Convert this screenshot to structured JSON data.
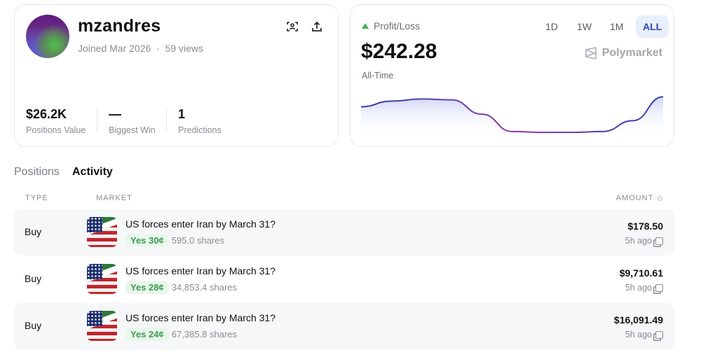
{
  "profile": {
    "username": "mzandres",
    "joined": "Joined Mar 2026",
    "separator": "·",
    "views": "59 views",
    "stats": [
      {
        "value": "$26.2K",
        "label": "Positions Value"
      },
      {
        "value": "—",
        "label": "Biggest Win"
      },
      {
        "value": "1",
        "label": "Predictions"
      }
    ],
    "icons": [
      "scan-profile-icon",
      "share-icon"
    ]
  },
  "pnl": {
    "label": "Profit/Loss",
    "trend": "up",
    "value": "$242.28",
    "period": "All-Time",
    "brand": "Polymarket",
    "ranges": [
      "1D",
      "1W",
      "1M",
      "ALL"
    ],
    "active_range": "ALL"
  },
  "chart_data": {
    "type": "area",
    "series": [
      {
        "values": [
          0.62,
          0.75,
          0.8,
          0.78,
          0.45,
          0.05,
          0.03,
          0.03,
          0.05,
          0.3,
          0.85
        ]
      }
    ],
    "line_colors": [
      "#2e3fa6",
      "#8a3bb0"
    ],
    "fill": "#c9d0f5",
    "axes": "none",
    "grid": false
  },
  "tabs": [
    "Positions",
    "Activity"
  ],
  "active_tab": "Activity",
  "table": {
    "headers": {
      "type": "TYPE",
      "market": "MARKET",
      "amount": "AMOUNT"
    },
    "rows": [
      {
        "type": "Buy",
        "market": "US forces enter Iran by March 31?",
        "outcome": "Yes 30¢",
        "shares": "595.0 shares",
        "amount": "$178.50",
        "time": "5h ago"
      },
      {
        "type": "Buy",
        "market": "US forces enter Iran by March 31?",
        "outcome": "Yes 28¢",
        "shares": "34,853.4 shares",
        "amount": "$9,710.61",
        "time": "5h ago"
      },
      {
        "type": "Buy",
        "market": "US forces enter Iran by March 31?",
        "outcome": "Yes 24¢",
        "shares": "67,385.8 shares",
        "amount": "$16,091.49",
        "time": "5h ago"
      }
    ]
  },
  "colors": {
    "accent": "#2a47b8",
    "positive": "#3fb25a"
  }
}
